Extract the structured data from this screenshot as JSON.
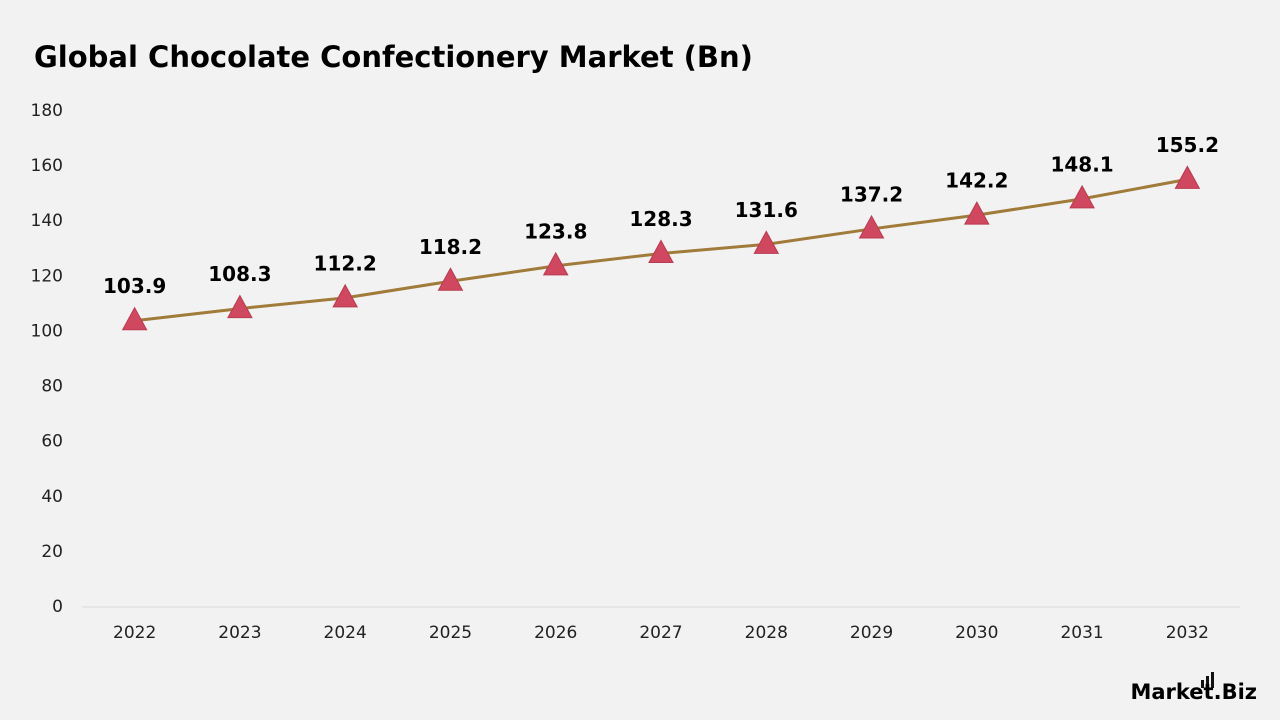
{
  "chart_data": {
    "type": "line",
    "title": "Global Chocolate Confectionery Market (Bn)",
    "categories": [
      "2022",
      "2023",
      "2024",
      "2025",
      "2026",
      "2027",
      "2028",
      "2029",
      "2030",
      "2031",
      "2032"
    ],
    "series": [
      {
        "name": "Market",
        "color": "#a07b3a",
        "marker_color": "#d0485f",
        "values": [
          103.9,
          108.3,
          112.2,
          118.2,
          123.8,
          128.3,
          131.6,
          137.2,
          142.2,
          148.1,
          155.2
        ]
      }
    ],
    "ylim": [
      0,
      180
    ],
    "yticks": [
      0,
      20,
      40,
      60,
      80,
      100,
      120,
      140,
      160,
      180
    ],
    "grid": false
  },
  "logo": "Market.Biz"
}
